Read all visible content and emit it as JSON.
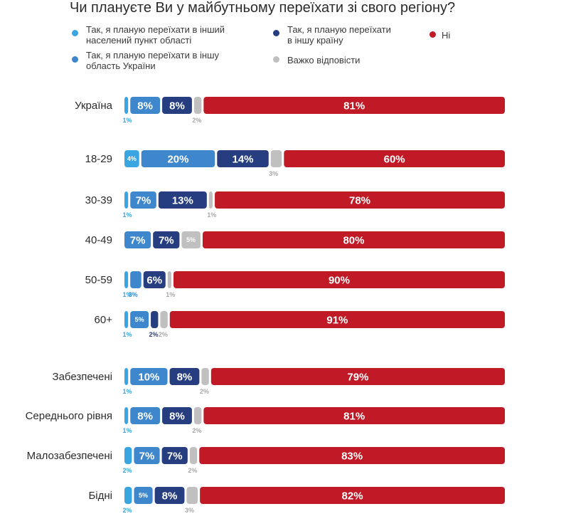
{
  "title": "Чи плануєте Ви у майбутньому переїхати зі свого регіону?",
  "colors": {
    "s1": "#39a6e1",
    "s2": "#3e87cc",
    "s3": "#263d80",
    "s4": "#c0c0c0",
    "s5": "#bf1a25"
  },
  "legend": [
    {
      "key": "s1",
      "line1": "Так, я планую переїхати в інший",
      "line2": "населений пункт області"
    },
    {
      "key": "s3",
      "line1": "Так, я планую переїхати",
      "line2": "в іншу країну"
    },
    {
      "key": "s5",
      "line1": "Ні",
      "line2": ""
    },
    {
      "key": "s2",
      "line1": "Так, я планую переїхати в іншу",
      "line2": "область України"
    },
    {
      "key": "s4",
      "line1": "Важко відповісти",
      "line2": ""
    }
  ],
  "chart_data": {
    "type": "bar",
    "orientation": "horizontal",
    "stacked": true,
    "unit": "%",
    "title": "Чи плануєте Ви у майбутньому переїхати зі свого регіону?",
    "categories": [
      "Україна",
      "18-29",
      "30-39",
      "40-49",
      "50-59",
      "60+",
      "Забезпечені",
      "Середнього рівня",
      "Малозабезпечені",
      "Бідні"
    ],
    "series": [
      {
        "name": "Так, я планую переїхати в інший населений пункт області",
        "color_key": "s1",
        "values": [
          1,
          4,
          1,
          0,
          1,
          1,
          1,
          1,
          2,
          2
        ]
      },
      {
        "name": "Так, я планую переїхати в іншу область України",
        "color_key": "s2",
        "values": [
          8,
          20,
          7,
          7,
          3,
          5,
          10,
          8,
          7,
          5
        ]
      },
      {
        "name": "Так, я планую переїхати в іншу країну",
        "color_key": "s3",
        "values": [
          8,
          14,
          13,
          7,
          6,
          2,
          8,
          8,
          7,
          8
        ]
      },
      {
        "name": "Важко відповісти",
        "color_key": "s4",
        "values": [
          2,
          3,
          1,
          5,
          1,
          2,
          2,
          2,
          2,
          3
        ]
      },
      {
        "name": "Ні",
        "color_key": "s5",
        "values": [
          81,
          60,
          78,
          80,
          90,
          91,
          79,
          81,
          83,
          82
        ]
      }
    ]
  }
}
